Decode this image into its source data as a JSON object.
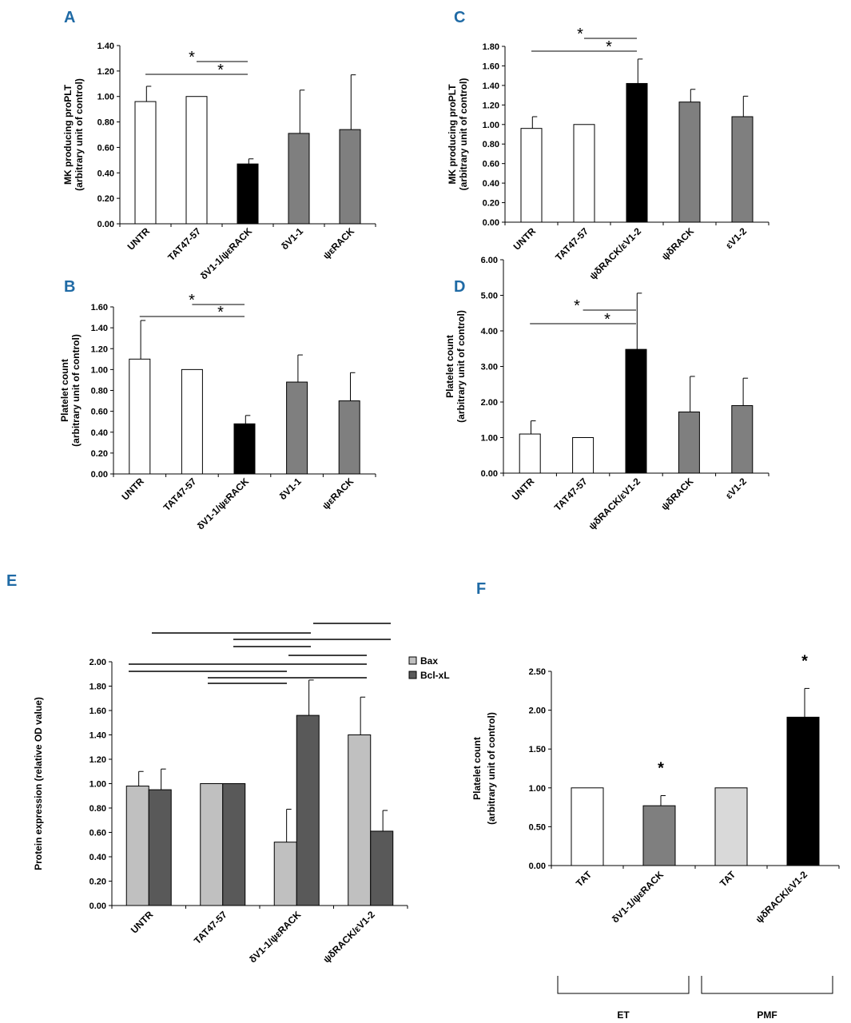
{
  "colors": {
    "white": "#ffffff",
    "black": "#000000",
    "gray": "#7f7f7f",
    "light": "#c0c0c0",
    "dark": "#595959",
    "lightgray": "#d9d9d9",
    "accent": "#1f6aa5"
  },
  "chart_data": [
    {
      "id": "A",
      "type": "bar",
      "title": "",
      "ylabel_lines": [
        "MK producing proPLT",
        "(arbitrary unit of control)"
      ],
      "categories": [
        "UNTR",
        "TAT47-57",
        "δV1-1/ψεRACK",
        "δV1-1",
        "ψεRACK"
      ],
      "values": [
        0.96,
        1.0,
        0.47,
        0.71,
        0.74
      ],
      "errors": [
        0.12,
        0,
        0.04,
        0.34,
        0.43
      ],
      "fills": [
        "white",
        "white",
        "black",
        "gray",
        "gray"
      ],
      "ylim": [
        0,
        1.4
      ],
      "yticks": [
        "0.00",
        "0.20",
        "0.40",
        "0.60",
        "0.80",
        "1.00",
        "1.20",
        "1.40"
      ],
      "significance": [
        {
          "from": 0,
          "to": 2,
          "label": "*"
        },
        {
          "from": 1,
          "to": 2,
          "label": "*"
        }
      ]
    },
    {
      "id": "C",
      "type": "bar",
      "title": "",
      "ylabel_lines": [
        "MK producing proPLT",
        "(arbitrary unit of control)"
      ],
      "categories": [
        "UNTR",
        "TAT47-57",
        "ψδRACK/εV1-2",
        "ψδRACK",
        "εV1-2"
      ],
      "values": [
        0.96,
        1.0,
        1.42,
        1.23,
        1.08
      ],
      "errors": [
        0.12,
        0,
        0.25,
        0.13,
        0.21
      ],
      "fills": [
        "white",
        "white",
        "black",
        "gray",
        "gray"
      ],
      "ylim": [
        0,
        1.8
      ],
      "yticks": [
        "0.00",
        "0.20",
        "0.40",
        "0.60",
        "0.80",
        "1.00",
        "1.20",
        "1.40",
        "1.60",
        "1.80"
      ],
      "significance": [
        {
          "from": 0,
          "to": 2,
          "label": "*"
        },
        {
          "from": 1,
          "to": 2,
          "label": "*"
        }
      ]
    },
    {
      "id": "B",
      "type": "bar",
      "title": "",
      "ylabel_lines": [
        "Platelet count",
        "(arbitrary unit of control)"
      ],
      "categories": [
        "UNTR",
        "TAT47-57",
        "δV1-1/ψεRACK",
        "δV1-1",
        "ψεRACK"
      ],
      "values": [
        1.1,
        1.0,
        0.48,
        0.88,
        0.7
      ],
      "errors": [
        0.37,
        0,
        0.08,
        0.26,
        0.27
      ],
      "fills": [
        "white",
        "white",
        "black",
        "gray",
        "gray"
      ],
      "ylim": [
        0,
        1.6
      ],
      "yticks": [
        "0.00",
        "0.20",
        "0.40",
        "0.60",
        "0.80",
        "1.00",
        "1.20",
        "1.40",
        "1.60"
      ],
      "significance": [
        {
          "from": 0,
          "to": 2,
          "label": "*"
        },
        {
          "from": 1,
          "to": 2,
          "label": "*"
        }
      ]
    },
    {
      "id": "D",
      "type": "bar",
      "title": "",
      "ylabel_lines": [
        "Platelet count",
        "(arbitrary unit of control)"
      ],
      "categories": [
        "UNTR",
        "TAT47-57",
        "ψδRACK/εV1-2",
        "ψδRACK",
        "εV1-2"
      ],
      "values": [
        1.1,
        1.0,
        3.48,
        1.72,
        1.9
      ],
      "errors": [
        0.37,
        0,
        1.58,
        1.0,
        0.77
      ],
      "fills": [
        "white",
        "white",
        "black",
        "gray",
        "gray"
      ],
      "ylim": [
        0,
        6.0
      ],
      "yticks": [
        "0.00",
        "1.00",
        "2.00",
        "3.00",
        "4.00",
        "5.00",
        "6.00"
      ],
      "significance": [
        {
          "from": 0,
          "to": 2,
          "label": "*"
        },
        {
          "from": 1,
          "to": 2,
          "label": "*"
        }
      ]
    },
    {
      "id": "E",
      "type": "grouped-bar",
      "title": "",
      "ylabel_lines": [
        "Protein expression (relative OD value)"
      ],
      "categories": [
        "UNTR",
        "TAT47-57",
        "δV1-1/ψεRACK",
        "ψδRACK/εV1-2"
      ],
      "series": [
        {
          "name": "Bax",
          "fill": "light",
          "values": [
            0.98,
            1.0,
            0.52,
            1.4
          ],
          "errors": [
            0.12,
            0,
            0.27,
            0.31
          ]
        },
        {
          "name": "Bcl-xL",
          "fill": "dark",
          "values": [
            0.95,
            1.0,
            1.56,
            0.61
          ],
          "errors": [
            0.17,
            0,
            0.29,
            0.17
          ]
        }
      ],
      "legend": "top-right",
      "ylim": [
        0,
        2.0
      ],
      "yticks": [
        "0.00",
        "0.20",
        "0.40",
        "0.60",
        "0.80",
        "1.00",
        "1.20",
        "1.40",
        "1.60",
        "1.80",
        "2.00"
      ]
    },
    {
      "id": "F",
      "type": "bar",
      "title": "",
      "ylabel_lines": [
        "Platelet count",
        "(arbitrary unit of control)"
      ],
      "categories": [
        "TAT",
        "δV1-1/ψεRACK",
        "TAT",
        "ψδRACK/εV1-2"
      ],
      "values": [
        1.0,
        0.77,
        1.0,
        1.91
      ],
      "errors": [
        0,
        0.13,
        0,
        0.37
      ],
      "fills": [
        "white",
        "gray",
        "lightgray",
        "black"
      ],
      "stars": [
        "",
        "*",
        "",
        "*"
      ],
      "groups": [
        {
          "label": "ET",
          "from": 0,
          "to": 1
        },
        {
          "label": "PMF",
          "from": 2,
          "to": 3
        }
      ],
      "ylim": [
        0,
        2.5
      ],
      "yticks": [
        "0.00",
        "0.50",
        "1.00",
        "1.50",
        "2.00",
        "2.50"
      ]
    }
  ]
}
